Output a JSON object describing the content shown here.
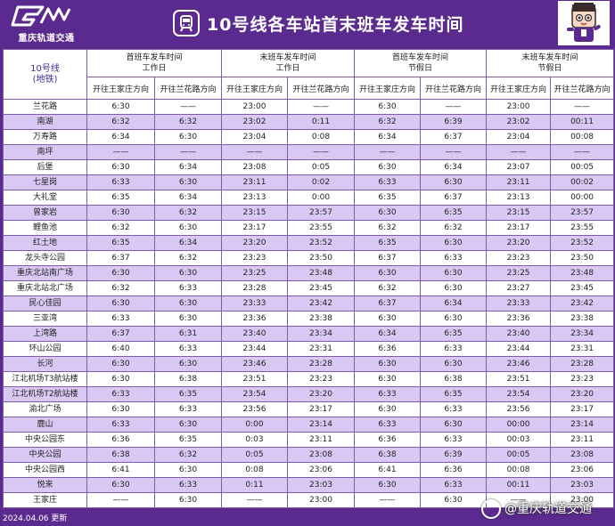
{
  "header": {
    "logo_text": "重庆轨道交通",
    "title": "10号线各车站首末班车发车时间",
    "metro_icon": "metro-train-icon",
    "mascot_icon": "mascot-character-icon",
    "bg_color": "#5b2a8e"
  },
  "table": {
    "line_name": "10号线",
    "line_type": "(地铁)",
    "groups": [
      {
        "title": "首班车发车时间",
        "sub": "工作日"
      },
      {
        "title": "末班车发车时间",
        "sub": "工作日"
      },
      {
        "title": "首班车发车时间",
        "sub": "节假日"
      },
      {
        "title": "末班车发车时间",
        "sub": "节假日"
      }
    ],
    "directions": [
      "开往王家庄方向",
      "开往兰花路方向",
      "开往王家庄方向",
      "开往兰花路方向",
      "开往王家庄方向",
      "开往兰花路方向",
      "开往王家庄方向",
      "开往兰花路方向"
    ],
    "rows": [
      [
        "兰花路",
        "6:30",
        "——",
        "23:00",
        "——",
        "6:30",
        "——",
        "23:00",
        "——"
      ],
      [
        "南湖",
        "6:32",
        "6:32",
        "23:02",
        "0:11",
        "6:32",
        "6:39",
        "23:02",
        "00:11"
      ],
      [
        "万寿路",
        "6:34",
        "6:30",
        "23:04",
        "0:08",
        "6:34",
        "6:37",
        "23:04",
        "00:08"
      ],
      [
        "南坪",
        "——",
        "——",
        "——",
        "——",
        "——",
        "——",
        "——",
        "——"
      ],
      [
        "后堡",
        "6:30",
        "6:34",
        "23:08",
        "0:05",
        "6:30",
        "6:34",
        "23:07",
        "00:05"
      ],
      [
        "七星岗",
        "6:33",
        "6:30",
        "23:11",
        "0:02",
        "6:33",
        "6:30",
        "23:11",
        "00:02"
      ],
      [
        "大礼堂",
        "6:35",
        "6:34",
        "23:13",
        "0:00",
        "6:35",
        "6:37",
        "23:13",
        "00:00"
      ],
      [
        "曾家岩",
        "6:30",
        "6:32",
        "23:15",
        "23:57",
        "6:30",
        "6:35",
        "23:15",
        "23:57"
      ],
      [
        "鲤鱼池",
        "6:32",
        "6:30",
        "23:17",
        "23:55",
        "6:32",
        "6:32",
        "23:17",
        "23:55"
      ],
      [
        "红土地",
        "6:35",
        "6:34",
        "23:20",
        "23:52",
        "6:35",
        "6:30",
        "23:20",
        "23:52"
      ],
      [
        "龙头寺公园",
        "6:37",
        "6:32",
        "23:23",
        "23:50",
        "6:37",
        "6:33",
        "23:23",
        "23:50"
      ],
      [
        "重庆北站南广场",
        "6:30",
        "6:30",
        "23:25",
        "23:48",
        "6:30",
        "6:30",
        "23:25",
        "23:48"
      ],
      [
        "重庆北站北广场",
        "6:32",
        "6:33",
        "23:28",
        "23:45",
        "6:32",
        "6:30",
        "23:27",
        "23:45"
      ],
      [
        "民心佳园",
        "6:30",
        "6:30",
        "23:33",
        "23:42",
        "6:37",
        "6:34",
        "23:33",
        "23:42"
      ],
      [
        "三亚湾",
        "6:33",
        "6:30",
        "23:36",
        "23:38",
        "6:30",
        "6:30",
        "23:36",
        "23:38"
      ],
      [
        "上湾路",
        "6:37",
        "6:31",
        "23:40",
        "23:34",
        "6:34",
        "6:35",
        "23:40",
        "23:34"
      ],
      [
        "环山公园",
        "6:40",
        "6:33",
        "23:44",
        "23:31",
        "6:36",
        "6:33",
        "23:44",
        "23:31"
      ],
      [
        "长河",
        "6:30",
        "6:30",
        "23:46",
        "23:28",
        "6:30",
        "6:30",
        "23:46",
        "23:28"
      ],
      [
        "江北机场T3航站楼",
        "6:30",
        "6:38",
        "23:51",
        "23:23",
        "6:30",
        "6:38",
        "23:51",
        "23:23"
      ],
      [
        "江北机场T2航站楼",
        "6:33",
        "6:35",
        "23:54",
        "23:20",
        "6:33",
        "6:35",
        "23:54",
        "23:20"
      ],
      [
        "渝北广场",
        "6:30",
        "6:33",
        "23:56",
        "23:17",
        "6:30",
        "6:33",
        "23:56",
        "23:17"
      ],
      [
        "鹿山",
        "6:33",
        "6:30",
        "0:00",
        "23:14",
        "6:33",
        "6:30",
        "00:00",
        "23:14"
      ],
      [
        "中央公园东",
        "6:36",
        "6:35",
        "0:03",
        "23:11",
        "6:36",
        "6:33",
        "00:03",
        "23:11"
      ],
      [
        "中央公园",
        "6:38",
        "6:32",
        "0:05",
        "23:08",
        "6:38",
        "6:39",
        "00:05",
        "23:08"
      ],
      [
        "中央公园西",
        "6:41",
        "6:30",
        "0:08",
        "23:06",
        "6:41",
        "6:36",
        "00:08",
        "23:06"
      ],
      [
        "悦来",
        "6:30",
        "6:33",
        "0:11",
        "23:03",
        "6:30",
        "6:33",
        "00:11",
        "23:03"
      ],
      [
        "王家庄",
        "——",
        "6:30",
        "——",
        "23:00",
        "——",
        "6:30",
        "——",
        "23:00"
      ]
    ]
  },
  "footer": {
    "date": "2024.04.06 更新"
  },
  "watermark": {
    "text": "@重庆轨道交通",
    "icon": "weibo-icon"
  }
}
